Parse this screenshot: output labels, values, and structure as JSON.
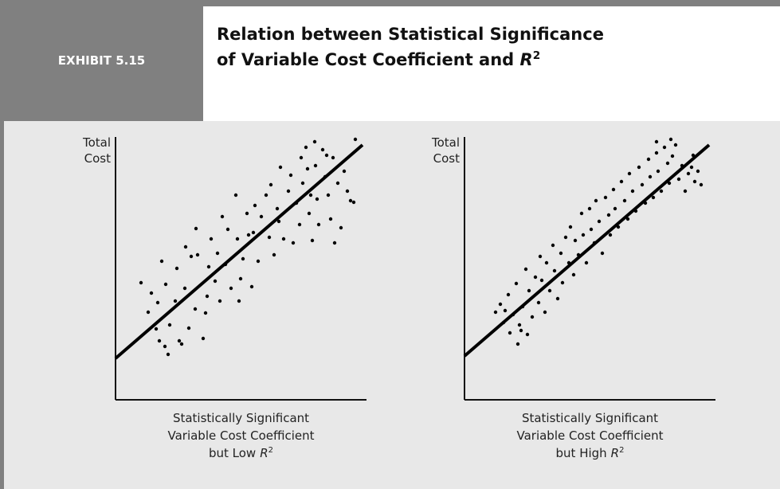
{
  "header": {
    "exhibit": "EXHIBIT 5.15",
    "title_lines": [
      "Relation between Statistical Significance",
      "of Variable Cost Coefficient and"
    ],
    "title_var": "R",
    "title_sup": "2"
  },
  "chart_data": [
    {
      "type": "scatter",
      "color": "#000000",
      "y_label": [
        "Total",
        "Cost"
      ],
      "caption": [
        "Statistically Significant",
        "Variable Cost Coefficient",
        "but Low"
      ],
      "caption_var": "R",
      "caption_sup": "2",
      "xlim": [
        0,
        315
      ],
      "ylim": [
        0,
        330
      ],
      "line": {
        "x": [
          0,
          310
        ],
        "y": [
          52,
          320
        ]
      },
      "x": [
        32,
        45,
        41,
        53,
        58,
        63,
        51,
        55,
        62,
        66,
        68,
        75,
        77,
        80,
        83,
        87,
        88,
        92,
        95,
        100,
        101,
        103,
        110,
        113,
        115,
        117,
        120,
        125,
        128,
        131,
        134,
        138,
        141,
        145,
        151,
        153,
        155,
        157,
        160,
        165,
        167,
        171,
        173,
        175,
        179,
        183,
        189,
        193,
        195,
        199,
        203,
        205,
        207,
        211,
        217,
        220,
        223,
        227,
        231,
        233,
        235,
        239,
        241,
        243,
        245,
        250,
        251,
        253,
        255,
        260,
        263,
        267,
        270,
        273,
        275,
        279,
        283,
        287,
        291,
        295,
        299,
        301,
        265,
        247
      ],
      "y": [
        147,
        134,
        110,
        122,
        174,
        145,
        89,
        74,
        67,
        57,
        94,
        124,
        165,
        74,
        70,
        140,
        192,
        90,
        180,
        114,
        215,
        182,
        77,
        109,
        130,
        167,
        202,
        149,
        184,
        124,
        230,
        170,
        214,
        140,
        257,
        202,
        124,
        152,
        177,
        234,
        207,
        142,
        210,
        244,
        174,
        230,
        257,
        204,
        270,
        182,
        240,
        224,
        292,
        202,
        262,
        282,
        197,
        247,
        220,
        304,
        272,
        317,
        290,
        234,
        257,
        324,
        294,
        252,
        220,
        314,
        280,
        257,
        227,
        304,
        197,
        272,
        216,
        287,
        262,
        250,
        248,
        327,
        307,
        200
      ]
    },
    {
      "type": "scatter",
      "color": "#000000",
      "y_label": [
        "Total",
        "Cost"
      ],
      "caption": [
        "Statistically Significant",
        "Variable Cost Coefficient",
        "but High"
      ],
      "caption_var": "R",
      "caption_sup": "2",
      "xlim": [
        0,
        315
      ],
      "ylim": [
        0,
        330
      ],
      "line": {
        "x": [
          0,
          307
        ],
        "y": [
          55,
          320
        ]
      },
      "x": [
        39,
        45,
        49,
        55,
        57,
        61,
        65,
        67,
        69,
        73,
        77,
        79,
        81,
        85,
        89,
        93,
        95,
        97,
        101,
        103,
        107,
        111,
        113,
        117,
        121,
        123,
        127,
        131,
        133,
        137,
        139,
        143,
        147,
        149,
        153,
        157,
        159,
        163,
        165,
        169,
        173,
        177,
        181,
        183,
        187,
        189,
        193,
        197,
        201,
        205,
        207,
        211,
        215,
        219,
        223,
        227,
        231,
        233,
        237,
        241,
        243,
        247,
        251,
        255,
        257,
        261,
        265,
        269,
        273,
        277,
        281,
        285,
        289,
        293,
        297,
        259,
        241,
        287,
        71,
        51
      ],
      "y": [
        110,
        120,
        97,
        132,
        84,
        107,
        146,
        70,
        94,
        117,
        164,
        82,
        137,
        104,
        154,
        122,
        180,
        150,
        110,
        172,
        137,
        194,
        162,
        127,
        184,
        147,
        204,
        172,
        217,
        157,
        200,
        182,
        234,
        207,
        172,
        240,
        214,
        197,
        250,
        224,
        184,
        254,
        232,
        207,
        264,
        240,
        217,
        274,
        250,
        227,
        284,
        262,
        237,
        292,
        270,
        247,
        302,
        280,
        254,
        310,
        287,
        262,
        317,
        297,
        272,
        306,
        320,
        277,
        294,
        262,
        284,
        292,
        274,
        287,
        270,
        327,
        324,
        307,
        87,
        112
      ]
    }
  ]
}
